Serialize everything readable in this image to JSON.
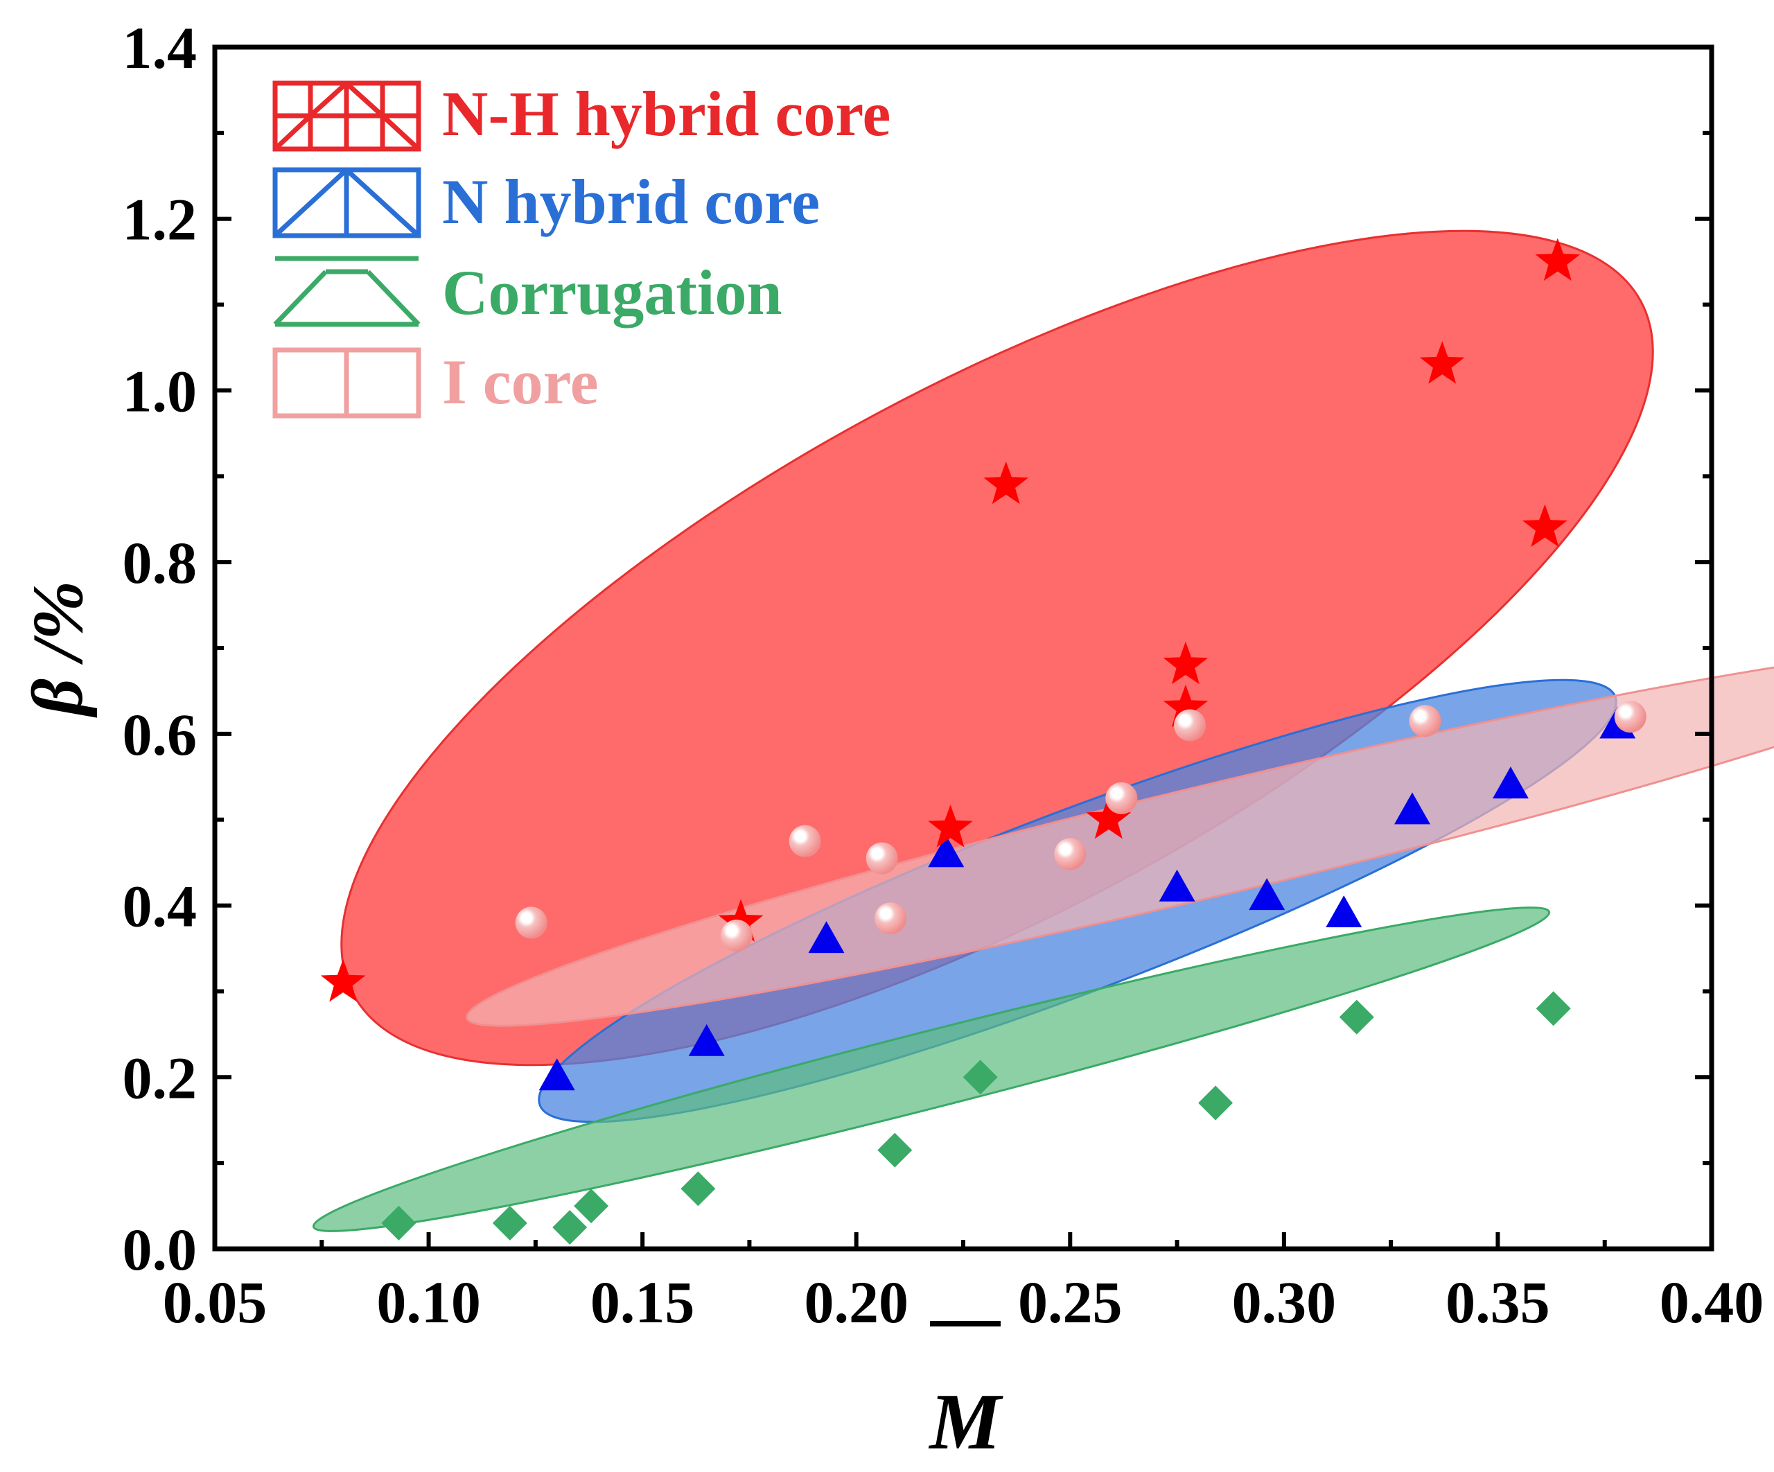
{
  "chart_data": {
    "type": "scatter",
    "title": "",
    "xlabel": "M",
    "xlabel_overline": true,
    "ylabel": "β /%",
    "xlim": [
      0.05,
      0.4
    ],
    "ylim": [
      0.0,
      1.4
    ],
    "xticks": [
      "0.05",
      "0.10",
      "0.15",
      "0.20",
      "0.25",
      "0.30",
      "0.35",
      "0.40"
    ],
    "yticks": [
      "0.0",
      "0.2",
      "0.4",
      "0.6",
      "0.8",
      "1.0",
      "1.2",
      "1.4"
    ],
    "grid": false,
    "legend_position": "top-left",
    "series": [
      {
        "name": "N-H hybrid core",
        "marker": "star",
        "color": "#ff0000",
        "label_color": "#e8282b",
        "region_color": "#ff5a5a",
        "x": [
          0.08,
          0.173,
          0.222,
          0.235,
          0.259,
          0.277,
          0.277,
          0.337,
          0.361,
          0.364
        ],
        "y": [
          0.31,
          0.38,
          0.49,
          0.89,
          0.5,
          0.63,
          0.68,
          1.03,
          0.84,
          1.15
        ]
      },
      {
        "name": "N hybrid core",
        "marker": "triangle",
        "color": "#0000ee",
        "label_color": "#2a6fd6",
        "region_color": "#6b9de6",
        "x": [
          0.13,
          0.165,
          0.193,
          0.221,
          0.275,
          0.296,
          0.314,
          0.33,
          0.353,
          0.378
        ],
        "y": [
          0.2,
          0.24,
          0.36,
          0.46,
          0.42,
          0.41,
          0.39,
          0.51,
          0.54,
          0.61
        ]
      },
      {
        "name": "Corrugation",
        "marker": "diamond",
        "color": "#3aaa66",
        "label_color": "#3aaa66",
        "region_color": "#7fcc9c",
        "x": [
          0.093,
          0.119,
          0.133,
          0.138,
          0.163,
          0.209,
          0.229,
          0.284,
          0.317,
          0.363
        ],
        "y": [
          0.03,
          0.03,
          0.025,
          0.05,
          0.07,
          0.115,
          0.2,
          0.17,
          0.27,
          0.28
        ]
      },
      {
        "name": "I core",
        "marker": "sphere",
        "color": "#f29a9a",
        "label_color": "#f0a0a0",
        "region_color": "#f2a8a8",
        "x": [
          0.124,
          0.172,
          0.188,
          0.206,
          0.208,
          0.25,
          0.262,
          0.278,
          0.333,
          0.381
        ],
        "y": [
          0.38,
          0.365,
          0.475,
          0.455,
          0.385,
          0.46,
          0.525,
          0.61,
          0.615,
          0.62
        ]
      }
    ]
  }
}
